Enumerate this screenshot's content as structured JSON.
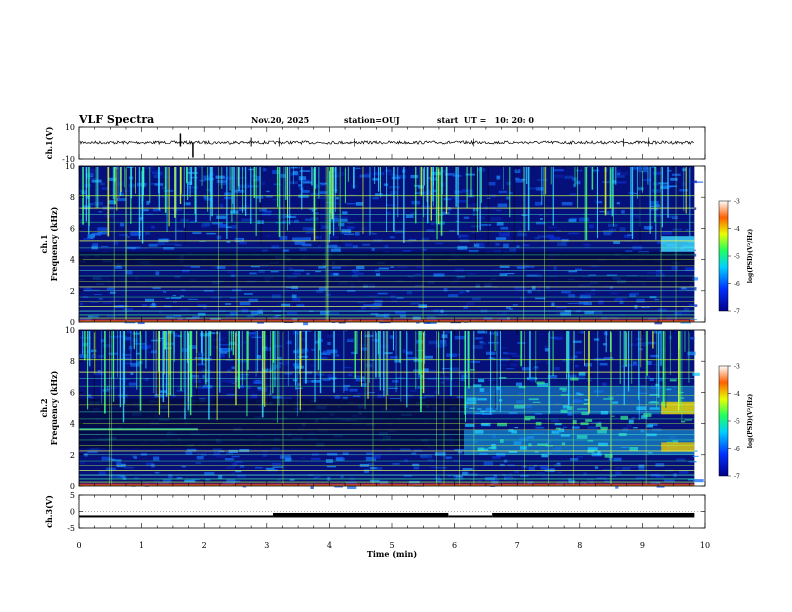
{
  "header": {
    "title": "VLF Spectra",
    "date": "Nov.20, 2025",
    "station": "station=OUJ",
    "start": "start  UT =   10: 20: 0"
  },
  "chart_data": {
    "type": "heatmap",
    "title": "VLF Spectra",
    "xlabel": "Time  (min)",
    "xlim": [
      0,
      10
    ],
    "xticks": [
      "0",
      "1",
      "2",
      "3",
      "4",
      "5",
      "6",
      "7",
      "8",
      "9",
      "10"
    ],
    "panels": [
      {
        "name": "ch.1 waveform",
        "ylabel": "ch.1(V)",
        "ylim": [
          -10,
          10
        ],
        "yticks": [
          "10",
          "-10"
        ],
        "type": "line"
      },
      {
        "name": "ch.1 spectrogram",
        "ylabel": "ch.1\nFrequency  (kHz)",
        "ylim": [
          0,
          10
        ],
        "yticks": [
          "0",
          "2",
          "4",
          "6",
          "8",
          "10"
        ],
        "colorbar": {
          "label": "log(PSD)(V²/Hz)",
          "ticks": [
            "-3",
            "-4",
            "-5",
            "-6",
            "-7"
          ],
          "range": [
            -7,
            -3
          ]
        },
        "features": {
          "enhanced_band_khz": [
            4.5,
            5.5
          ],
          "enhanced_from_min": 9.2
        }
      },
      {
        "name": "ch.2 spectrogram",
        "ylabel": "ch.2\nFrequency  (kHz)",
        "ylim": [
          0,
          10
        ],
        "yticks": [
          "0",
          "2",
          "4",
          "6",
          "8",
          "10"
        ],
        "colorbar": {
          "label": "log(PSD)(V²/Hz)",
          "ticks": [
            "-3",
            "-4",
            "-5",
            "-6",
            "-7"
          ],
          "range": [
            -7,
            -3
          ]
        },
        "features": {
          "level_change_at_min": 6.15,
          "enhanced_bands_khz": [
            [
              2.0,
              3.0
            ],
            [
              4.6,
              5.4
            ]
          ]
        }
      },
      {
        "name": "ch.3 level",
        "ylabel": "ch.3(V)",
        "ylim": [
          -5,
          5
        ],
        "yticks": [
          "5",
          "0",
          "-5"
        ],
        "type": "step",
        "segments": [
          {
            "t0": 0.0,
            "t1": 3.1,
            "level": -1.5
          },
          {
            "t0": 3.1,
            "t1": 5.9,
            "level": -1.2
          },
          {
            "t0": 5.9,
            "t1": 6.6,
            "level": -1.5
          },
          {
            "t0": 6.6,
            "t1": 9.83,
            "level": -1.2
          }
        ]
      }
    ],
    "colors": {
      "low": "#000080",
      "mid": "#00c8ff",
      "high": "#ff2000"
    }
  }
}
